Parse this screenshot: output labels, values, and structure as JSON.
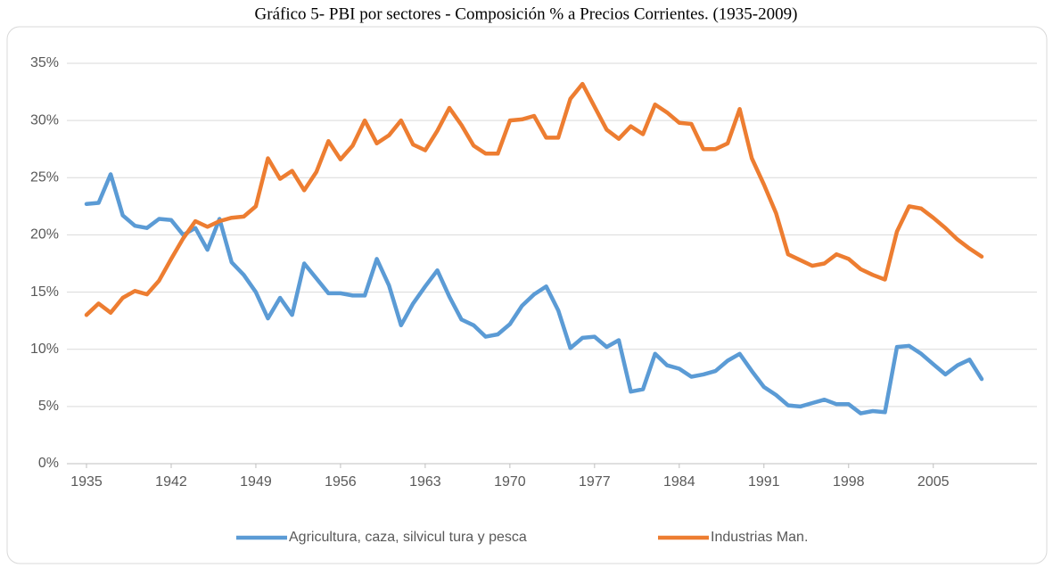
{
  "chart_data": {
    "type": "line",
    "title": "Gráfico 5- PBI por sectores - Composición % a Precios Corrientes. (1935-2009)",
    "x": [
      1935,
      1936,
      1937,
      1938,
      1939,
      1940,
      1941,
      1942,
      1943,
      1944,
      1945,
      1946,
      1947,
      1948,
      1949,
      1950,
      1951,
      1952,
      1953,
      1954,
      1955,
      1956,
      1957,
      1958,
      1959,
      1960,
      1961,
      1962,
      1963,
      1964,
      1965,
      1966,
      1967,
      1968,
      1969,
      1970,
      1971,
      1972,
      1973,
      1974,
      1975,
      1976,
      1977,
      1978,
      1979,
      1980,
      1981,
      1982,
      1983,
      1984,
      1985,
      1986,
      1987,
      1988,
      1989,
      1990,
      1991,
      1992,
      1993,
      1994,
      1995,
      1996,
      1997,
      1998,
      1999,
      2000,
      2001,
      2002,
      2003,
      2004,
      2005,
      2006,
      2007,
      2008,
      2009
    ],
    "series": [
      {
        "name": "Agricultura, caza, silvicul tura y pesca",
        "color": "#5b9bd5",
        "values": [
          22.7,
          22.8,
          25.3,
          21.7,
          20.8,
          20.6,
          21.4,
          21.3,
          20.0,
          20.6,
          18.7,
          21.4,
          17.6,
          16.5,
          15.0,
          12.7,
          14.5,
          13.0,
          17.5,
          16.2,
          14.9,
          14.9,
          14.7,
          14.7,
          17.9,
          15.6,
          12.1,
          14.0,
          15.5,
          16.9,
          14.6,
          12.6,
          12.1,
          11.1,
          11.3,
          12.2,
          13.8,
          14.8,
          15.5,
          13.4,
          10.1,
          11.0,
          11.1,
          10.2,
          10.8,
          6.3,
          6.5,
          9.6,
          8.6,
          8.3,
          7.6,
          7.8,
          8.1,
          9.0,
          9.6,
          8.1,
          6.7,
          6.0,
          5.1,
          5.0,
          5.3,
          5.6,
          5.2,
          5.2,
          4.4,
          4.6,
          4.5,
          10.2,
          10.3,
          9.6,
          8.7,
          7.8,
          8.6,
          9.1,
          7.4
        ]
      },
      {
        "name": "Industrias Man.",
        "color": "#ed7d31",
        "values": [
          13.0,
          14.0,
          13.2,
          14.5,
          15.1,
          14.8,
          16.0,
          17.9,
          19.7,
          21.2,
          20.7,
          21.2,
          21.5,
          21.6,
          22.5,
          26.7,
          24.9,
          25.6,
          23.9,
          25.5,
          28.2,
          26.6,
          27.8,
          30.0,
          28.0,
          28.7,
          30.0,
          27.9,
          27.4,
          29.1,
          31.1,
          29.6,
          27.8,
          27.1,
          27.1,
          30.0,
          30.1,
          30.4,
          28.5,
          28.5,
          31.9,
          33.2,
          31.2,
          29.2,
          28.4,
          29.5,
          28.8,
          31.4,
          30.7,
          29.8,
          29.7,
          27.5,
          27.5,
          28.0,
          31.0,
          26.7,
          24.4,
          21.9,
          18.3,
          17.8,
          17.3,
          17.5,
          18.3,
          17.9,
          17.0,
          16.5,
          16.1,
          20.3,
          22.5,
          22.3,
          21.5,
          20.6,
          19.6,
          18.8,
          18.1
        ]
      }
    ],
    "xlim": [
      1935,
      2009
    ],
    "xticks": [
      1935,
      1942,
      1949,
      1956,
      1963,
      1970,
      1977,
      1984,
      1991,
      1998,
      2005
    ],
    "ylim": [
      0,
      35
    ],
    "yticks": [
      {
        "value": 0,
        "label": "0%"
      },
      {
        "value": 5,
        "label": "5%"
      },
      {
        "value": 10,
        "label": "10%"
      },
      {
        "value": 15,
        "label": "15%"
      },
      {
        "value": 20,
        "label": "20%"
      },
      {
        "value": 25,
        "label": "25%"
      },
      {
        "value": 30,
        "label": "30%"
      },
      {
        "value": 35,
        "label": "35%"
      }
    ],
    "grid": true,
    "legend": "bottom"
  }
}
